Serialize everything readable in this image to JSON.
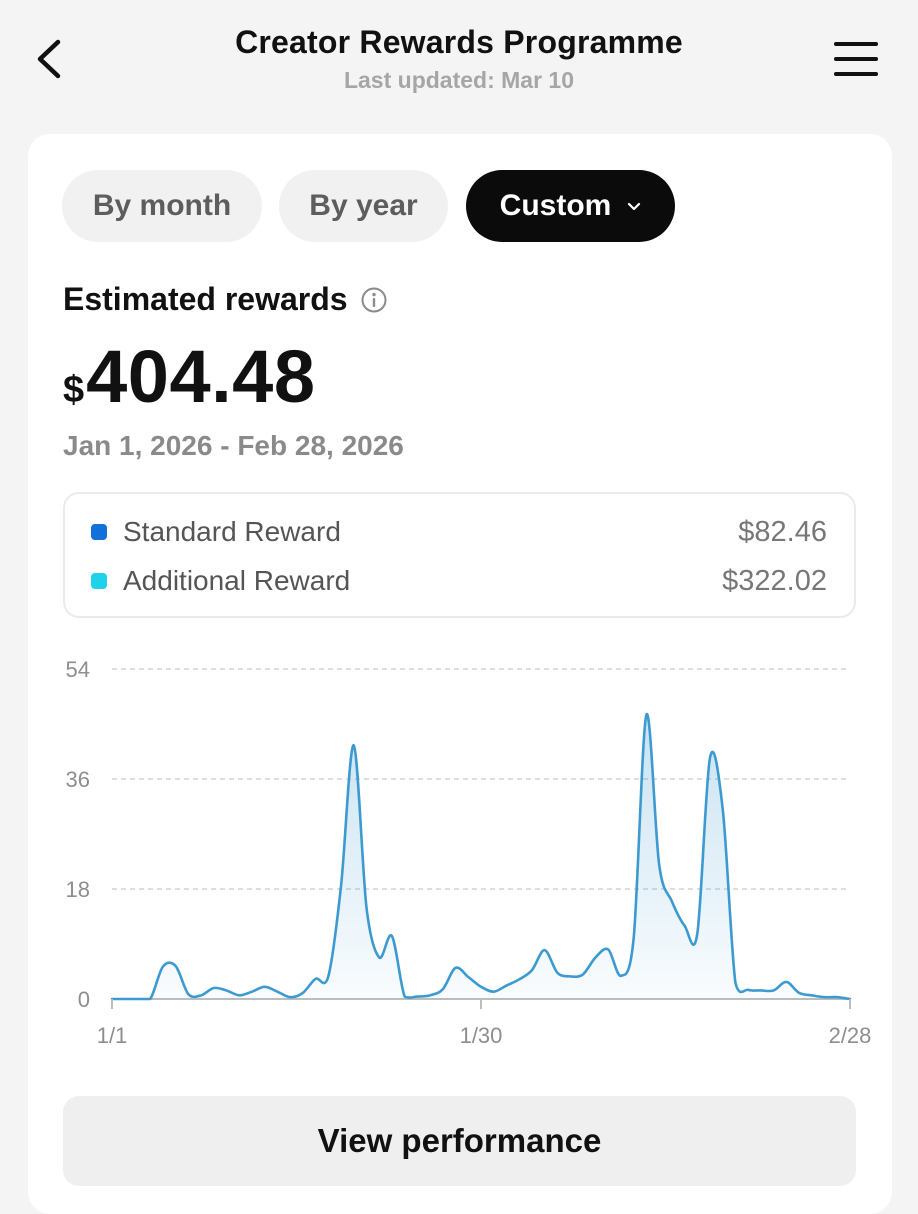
{
  "header": {
    "title": "Creator Rewards Programme",
    "subtitle": "Last updated: Mar 10"
  },
  "period_tabs": [
    {
      "label": "By month",
      "selected": false
    },
    {
      "label": "By year",
      "selected": false
    },
    {
      "label": "Custom",
      "selected": true
    }
  ],
  "rewards": {
    "label": "Estimated rewards",
    "currency": "$",
    "amount": "404.48",
    "date_range": "Jan 1, 2026 - Feb 28, 2026"
  },
  "breakdown": [
    {
      "label": "Standard Reward",
      "value": "$82.46",
      "color": "#1171d8"
    },
    {
      "label": "Additional Reward",
      "value": "$322.02",
      "color": "#1ed2ea"
    }
  ],
  "chart_data": {
    "type": "area",
    "x_tick_labels": [
      "1/1",
      "1/30",
      "2/28"
    ],
    "y_tick_labels": [
      "0",
      "18",
      "36",
      "54"
    ],
    "ylim": [
      0,
      54
    ],
    "grid": true,
    "line_color": "#3d9ad1",
    "series": [
      {
        "x": [
          "1/1",
          "1/2",
          "1/3",
          "1/4",
          "1/5",
          "1/6",
          "1/7",
          "1/8",
          "1/9",
          "1/10",
          "1/11",
          "1/12",
          "1/13",
          "1/14",
          "1/15",
          "1/16",
          "1/17",
          "1/18",
          "1/19",
          "1/20",
          "1/21",
          "1/22",
          "1/23",
          "1/24",
          "1/25",
          "1/26",
          "1/27",
          "1/28",
          "1/29",
          "1/30",
          "1/31",
          "2/1",
          "2/2",
          "2/3",
          "2/4",
          "2/5",
          "2/6",
          "2/7",
          "2/8",
          "2/9",
          "2/10",
          "2/11",
          "2/12",
          "2/13",
          "2/14",
          "2/15",
          "2/16",
          "2/17",
          "2/18",
          "2/19",
          "2/20",
          "2/21",
          "2/22",
          "2/23",
          "2/24",
          "2/25",
          "2/26",
          "2/27",
          "2/28"
        ],
        "values": [
          0,
          0,
          0,
          0,
          5.3,
          5.4,
          0.8,
          0.6,
          1.8,
          1.4,
          0.6,
          1.2,
          2,
          1.2,
          0.3,
          1,
          3.3,
          3.7,
          18.5,
          41.5,
          15,
          6.8,
          10.3,
          0.4,
          0.4,
          0.6,
          1.6,
          5.1,
          3.6,
          2,
          1.2,
          2.2,
          3.2,
          4.7,
          8,
          4.3,
          3.7,
          4,
          6.8,
          8.1,
          3.8,
          10,
          46.5,
          22,
          16,
          12,
          10.7,
          39.5,
          31,
          2.6,
          1.5,
          1.4,
          1.4,
          2.8,
          1,
          0.6,
          0.3,
          0.3,
          0
        ]
      }
    ]
  },
  "actions": {
    "view_performance": "View performance"
  }
}
